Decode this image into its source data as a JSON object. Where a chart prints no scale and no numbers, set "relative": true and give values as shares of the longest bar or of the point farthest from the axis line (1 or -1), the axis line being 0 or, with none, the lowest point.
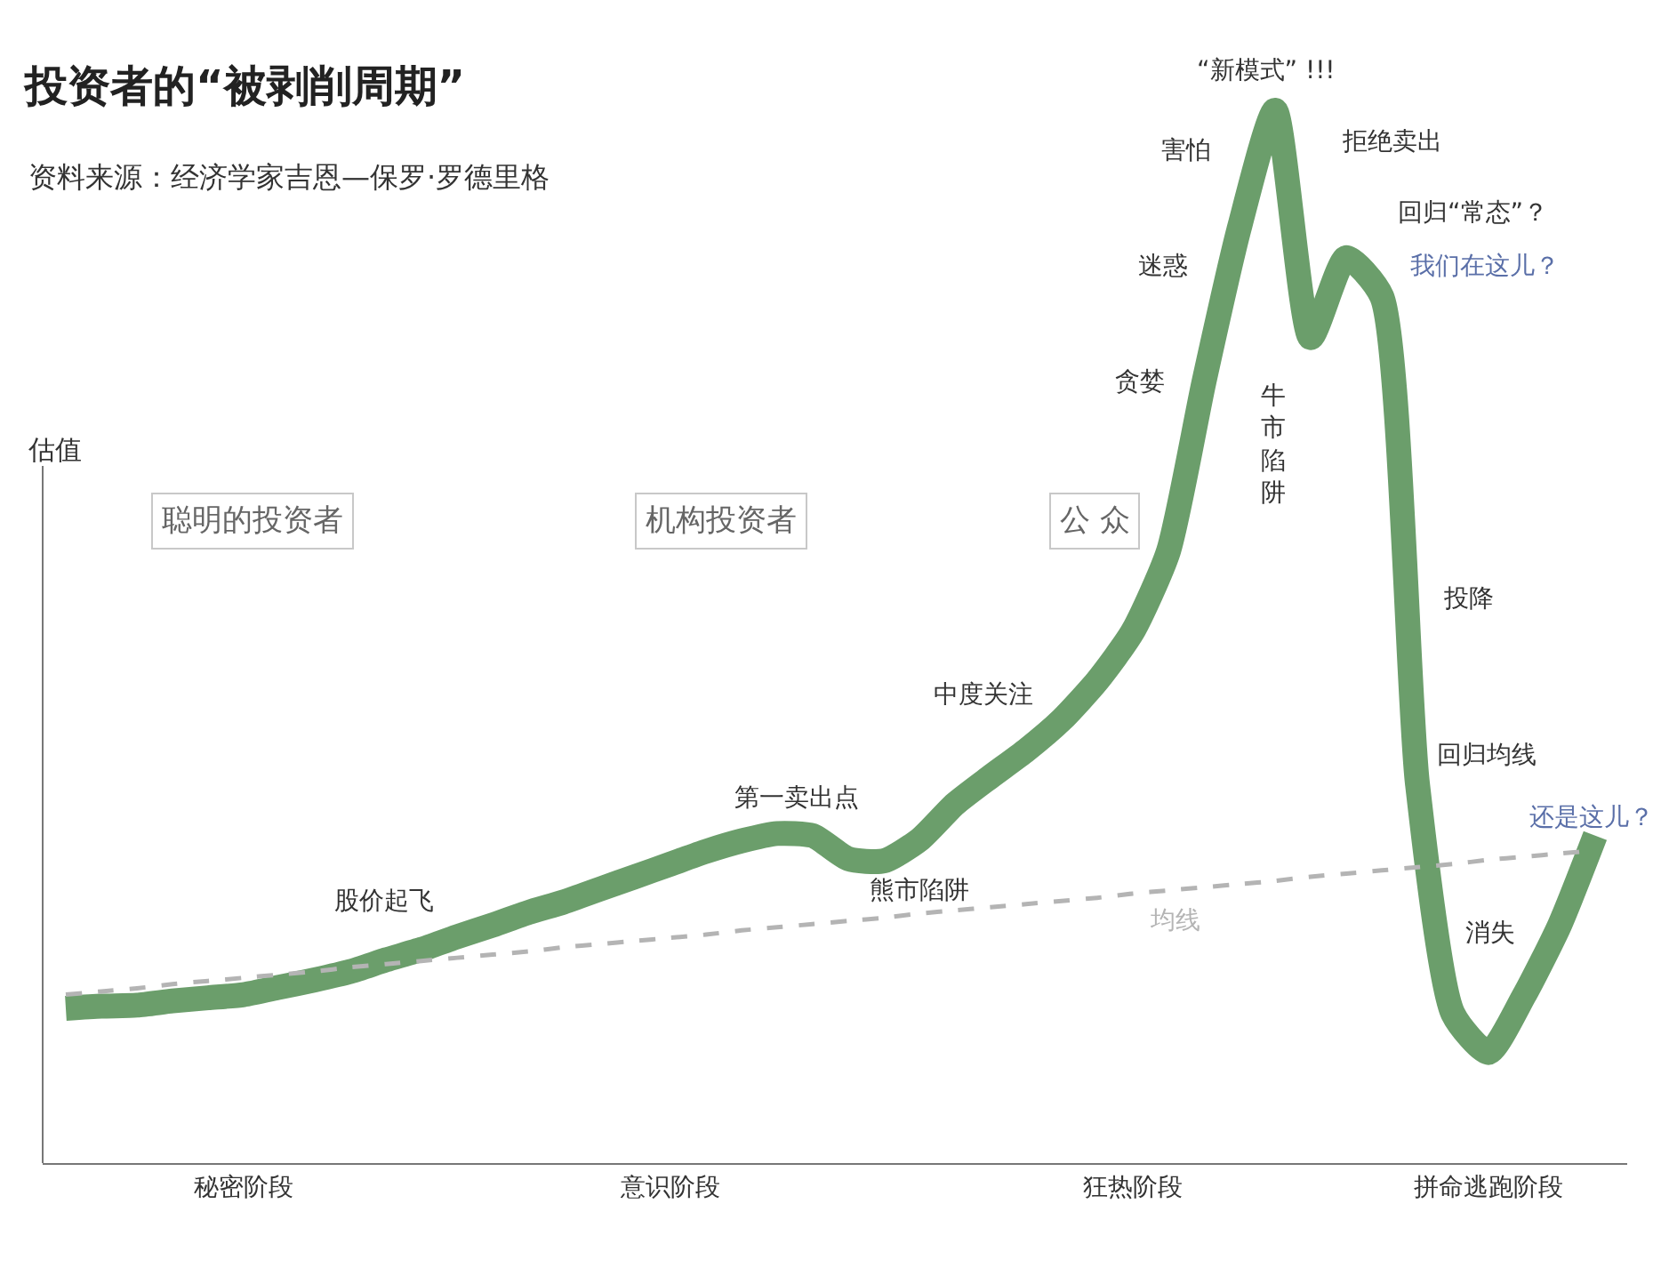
{
  "chart_data": {
    "type": "line",
    "title": "投资者的“被剥削周期”",
    "subtitle": "资料来源：经济学家吉恩—保罗·罗德里格",
    "ylabel": "估值",
    "relative": true,
    "tick_labels": "x",
    "legend": false,
    "marker": "none",
    "categories": [
      null,
      null,
      null,
      null,
      null,
      "秘密阶段",
      null,
      null,
      null,
      null,
      null,
      null,
      null,
      null,
      null,
      null,
      null,
      "意识阶段",
      null,
      null,
      null,
      null,
      null,
      null,
      null,
      null,
      null,
      null,
      null,
      null,
      "狂热阶段",
      null,
      null,
      null,
      null,
      null,
      null,
      null,
      null,
      null,
      "拼命逃跑阶段",
      null,
      null,
      null
    ],
    "series": [
      {
        "color": "#6b9e6b",
        "line_style": "solid",
        "values": [
          0.147,
          0.149,
          0.15,
          0.154,
          0.157,
          0.16,
          0.167,
          0.174,
          0.182,
          0.193,
          0.203,
          0.215,
          0.226,
          0.238,
          0.248,
          0.26,
          0.272,
          0.284,
          0.296,
          0.306,
          0.313,
          0.311,
          0.289,
          0.287,
          0.307,
          0.341,
          0.367,
          0.392,
          0.421,
          0.458,
          0.505,
          0.581,
          0.742,
          0.889,
          1,
          0.784,
          0.86,
          0.823,
          0.361,
          0.142,
          0.105,
          0.159,
          0.226,
          0.311
        ]
      },
      {
        "name": "均线",
        "color": "#b4b4b4",
        "line_style": "dashed",
        "values": [
          0.16,
          0.163,
          0.166,
          0.17,
          0.173,
          0.176,
          0.179,
          0.182,
          0.186,
          0.189,
          0.192,
          0.195,
          0.198,
          0.201,
          0.205,
          0.208,
          0.211,
          0.214,
          0.217,
          0.221,
          0.224,
          0.227,
          0.23,
          0.233,
          0.237,
          0.24,
          0.243,
          0.246,
          0.249,
          0.252,
          0.256,
          0.259,
          0.262,
          0.265,
          0.268,
          0.272,
          0.275,
          0.278,
          0.281,
          0.284,
          0.288,
          0.291,
          0.294,
          0.297
        ]
      }
    ],
    "annotations": [
      "聪明的投资者",
      "机构投资者",
      "公 众",
      "股价起飞",
      "第一卖出点",
      "熊市陷阱",
      "中度关注",
      "贪婪",
      "迷惑",
      "害怕",
      "“新模式” !!!",
      "拒绝卖出",
      "回归“常态”？",
      "我们在这儿？",
      "牛市陷阱",
      "投降",
      "回归均线",
      "还是这儿？",
      "消失"
    ]
  }
}
